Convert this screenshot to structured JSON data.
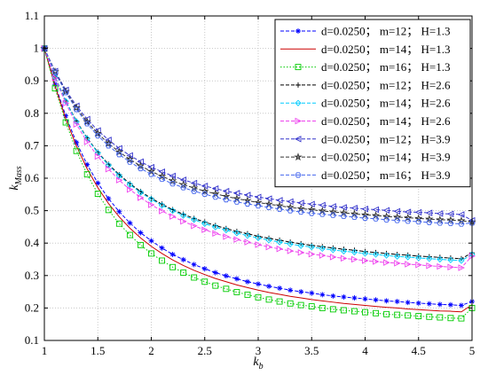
{
  "chart_data": {
    "type": "line",
    "xlabel": "k",
    "xlabel_sub": "b",
    "ylabel": "k",
    "ylabel_sub": "Mass",
    "xlim": [
      1,
      5
    ],
    "ylim": [
      0.1,
      1.1
    ],
    "xticks": [
      "1",
      "1.5",
      "2",
      "2.5",
      "3",
      "3.5",
      "4",
      "4.5",
      "5"
    ],
    "yticks": [
      "0.1",
      "0.2",
      "0.3",
      "0.4",
      "0.5",
      "0.6",
      "0.7",
      "0.8",
      "0.9",
      "1",
      "1.1"
    ],
    "grid": true,
    "legend_position": "top-right",
    "x": [
      1.0,
      1.1,
      1.2,
      1.3,
      1.4,
      1.5,
      1.6,
      1.7,
      1.8,
      1.9,
      2.0,
      2.1,
      2.2,
      2.3,
      2.4,
      2.5,
      2.6,
      2.7,
      2.8,
      2.9,
      3.0,
      3.1,
      3.2,
      3.3,
      3.4,
      3.5,
      3.6,
      3.7,
      3.8,
      3.9,
      4.0,
      4.1,
      4.2,
      4.3,
      4.4,
      4.5,
      4.6,
      4.7,
      4.8,
      4.9,
      5.0
    ],
    "series": [
      {
        "name": "d=0.0250； m=12； H=1.3",
        "color": "#0000ff",
        "dash": "dash",
        "marker": "asterisk",
        "values": [
          1.0,
          0.889,
          0.792,
          0.71,
          0.642,
          0.585,
          0.537,
          0.497,
          0.462,
          0.432,
          0.407,
          0.385,
          0.365,
          0.349,
          0.334,
          0.321,
          0.309,
          0.299,
          0.29,
          0.281,
          0.274,
          0.267,
          0.261,
          0.255,
          0.25,
          0.246,
          0.241,
          0.237,
          0.234,
          0.231,
          0.228,
          0.225,
          0.222,
          0.22,
          0.217,
          0.215,
          0.213,
          0.211,
          0.21,
          0.208,
          0.22
        ]
      },
      {
        "name": "d=0.0250； m=14； H=1.3",
        "color": "#cc0000",
        "dash": "solid",
        "marker": "none",
        "values": [
          1.0,
          0.884,
          0.783,
          0.699,
          0.629,
          0.571,
          0.522,
          0.481,
          0.446,
          0.416,
          0.39,
          0.368,
          0.348,
          0.331,
          0.316,
          0.303,
          0.291,
          0.281,
          0.271,
          0.263,
          0.255,
          0.248,
          0.242,
          0.236,
          0.231,
          0.226,
          0.222,
          0.218,
          0.214,
          0.211,
          0.208,
          0.205,
          0.202,
          0.2,
          0.197,
          0.195,
          0.193,
          0.191,
          0.19,
          0.188,
          0.21
        ]
      },
      {
        "name": "d=0.0250； m=16； H=1.3",
        "color": "#00cc00",
        "dash": "dot",
        "marker": "square",
        "values": [
          1.0,
          0.877,
          0.772,
          0.684,
          0.612,
          0.552,
          0.502,
          0.46,
          0.425,
          0.394,
          0.368,
          0.346,
          0.326,
          0.309,
          0.294,
          0.281,
          0.269,
          0.259,
          0.249,
          0.241,
          0.233,
          0.226,
          0.22,
          0.214,
          0.209,
          0.205,
          0.2,
          0.196,
          0.193,
          0.19,
          0.187,
          0.184,
          0.181,
          0.179,
          0.177,
          0.175,
          0.173,
          0.171,
          0.169,
          0.168,
          0.2
        ]
      },
      {
        "name": "d=0.0250； m=12； H=2.6",
        "color": "#000000",
        "dash": "dash",
        "marker": "plus",
        "values": [
          1.0,
          0.912,
          0.838,
          0.776,
          0.724,
          0.68,
          0.643,
          0.611,
          0.583,
          0.559,
          0.538,
          0.52,
          0.503,
          0.489,
          0.476,
          0.465,
          0.454,
          0.445,
          0.436,
          0.429,
          0.421,
          0.415,
          0.409,
          0.403,
          0.398,
          0.393,
          0.389,
          0.385,
          0.381,
          0.378,
          0.374,
          0.371,
          0.368,
          0.365,
          0.363,
          0.36,
          0.358,
          0.356,
          0.354,
          0.352,
          0.37
        ]
      },
      {
        "name": "d=0.0250； m=14； H=2.6",
        "color": "#00ccff",
        "dash": "dash",
        "marker": "diamond",
        "values": [
          1.0,
          0.911,
          0.837,
          0.774,
          0.722,
          0.678,
          0.64,
          0.608,
          0.58,
          0.556,
          0.535,
          0.516,
          0.5,
          0.485,
          0.472,
          0.46,
          0.449,
          0.44,
          0.431,
          0.423,
          0.416,
          0.409,
          0.403,
          0.397,
          0.392,
          0.388,
          0.383,
          0.379,
          0.375,
          0.372,
          0.368,
          0.365,
          0.362,
          0.359,
          0.357,
          0.354,
          0.352,
          0.35,
          0.348,
          0.346,
          0.365
        ]
      },
      {
        "name": "d=0.0250； m=14； H=2.6",
        "color": "#ee44ee",
        "dash": "dash",
        "marker": "triangle-right",
        "values": [
          1.0,
          0.908,
          0.831,
          0.766,
          0.712,
          0.667,
          0.628,
          0.594,
          0.565,
          0.54,
          0.518,
          0.499,
          0.482,
          0.467,
          0.453,
          0.441,
          0.43,
          0.42,
          0.411,
          0.403,
          0.395,
          0.388,
          0.382,
          0.376,
          0.371,
          0.366,
          0.362,
          0.357,
          0.353,
          0.35,
          0.346,
          0.343,
          0.34,
          0.338,
          0.335,
          0.333,
          0.33,
          0.328,
          0.326,
          0.324,
          0.36
        ]
      },
      {
        "name": "d=0.0250； m=12； H=3.9",
        "color": "#3333cc",
        "dash": "dash",
        "marker": "triangle-left",
        "values": [
          1.0,
          0.93,
          0.872,
          0.823,
          0.782,
          0.747,
          0.718,
          0.692,
          0.67,
          0.651,
          0.634,
          0.62,
          0.607,
          0.595,
          0.585,
          0.576,
          0.568,
          0.56,
          0.554,
          0.548,
          0.542,
          0.537,
          0.532,
          0.528,
          0.524,
          0.52,
          0.517,
          0.513,
          0.51,
          0.508,
          0.505,
          0.503,
          0.501,
          0.498,
          0.496,
          0.495,
          0.493,
          0.491,
          0.49,
          0.488,
          0.47
        ]
      },
      {
        "name": "d=0.0250； m=14； H=3.9",
        "color": "#333333",
        "dash": "dash",
        "marker": "star",
        "values": [
          1.0,
          0.928,
          0.867,
          0.817,
          0.774,
          0.738,
          0.707,
          0.681,
          0.658,
          0.638,
          0.621,
          0.606,
          0.592,
          0.58,
          0.57,
          0.56,
          0.552,
          0.544,
          0.537,
          0.531,
          0.525,
          0.52,
          0.515,
          0.51,
          0.506,
          0.503,
          0.499,
          0.496,
          0.493,
          0.49,
          0.487,
          0.485,
          0.482,
          0.48,
          0.478,
          0.476,
          0.474,
          0.472,
          0.471,
          0.469,
          0.465
        ]
      },
      {
        "name": "d=0.0250； m=16； H=3.9",
        "color": "#4466ee",
        "dash": "dash",
        "marker": "hexagon",
        "values": [
          1.0,
          0.926,
          0.864,
          0.812,
          0.768,
          0.731,
          0.7,
          0.673,
          0.65,
          0.63,
          0.612,
          0.597,
          0.583,
          0.571,
          0.56,
          0.551,
          0.542,
          0.534,
          0.527,
          0.521,
          0.515,
          0.51,
          0.505,
          0.5,
          0.496,
          0.492,
          0.489,
          0.486,
          0.483,
          0.48,
          0.477,
          0.475,
          0.472,
          0.47,
          0.468,
          0.466,
          0.464,
          0.462,
          0.461,
          0.459,
          0.462
        ]
      }
    ]
  }
}
